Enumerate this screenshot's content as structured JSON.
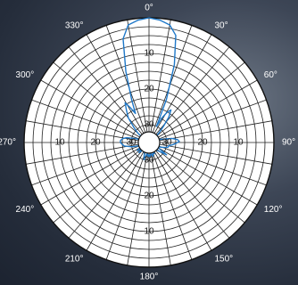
{
  "chart_data": {
    "type": "polar",
    "title": "",
    "radial_axis": {
      "ticks": [
        -10,
        -20,
        -30
      ],
      "tick_labels": [
        "10",
        "20",
        "30"
      ],
      "range_db": [
        -35,
        0
      ],
      "ring_step": 2.5,
      "direction": "inward"
    },
    "angular_axis": {
      "zero_at": "top",
      "direction": "clockwise",
      "ticks": [
        0,
        30,
        60,
        90,
        120,
        150,
        180,
        210,
        240,
        270,
        300,
        330
      ],
      "tick_labels": [
        "0°",
        "30°",
        "60°",
        "90°",
        "120°",
        "150°",
        "180°",
        "210°",
        "240°",
        "270°",
        "300°",
        "330°"
      ],
      "spoke_step": 10
    },
    "grid": true,
    "series": [
      {
        "color": "#1f78c8",
        "theta": [
          0,
          5,
          10,
          14,
          18,
          22,
          25,
          28,
          31,
          34,
          38,
          42,
          46,
          50,
          55,
          60,
          65,
          70,
          75,
          80,
          84,
          88,
          92,
          96,
          100,
          104,
          108,
          112,
          116,
          120,
          125,
          130,
          135,
          140,
          145,
          150,
          155,
          160,
          164,
          168,
          172,
          176,
          180,
          184,
          188,
          192,
          196,
          200,
          205,
          210,
          215,
          220,
          225,
          230,
          235,
          240,
          245,
          250,
          256,
          262,
          266,
          270,
          274,
          278,
          282,
          286,
          290,
          295,
          300,
          305,
          310,
          315,
          320,
          325,
          329,
          332,
          335,
          338,
          342,
          346,
          350,
          355,
          360
        ],
        "r_db": [
          0,
          -0.5,
          -1.5,
          -4,
          -12,
          -22,
          -30,
          -27,
          -25,
          -24,
          -26,
          -29,
          -31,
          -33,
          -34.5,
          -33,
          -32.5,
          -32.5,
          -31.5,
          -28.5,
          -27,
          -26.5,
          -27.5,
          -28.5,
          -29.5,
          -29.5,
          -30.5,
          -31.5,
          -32.5,
          -32,
          -29,
          -31,
          -32,
          -34,
          -33,
          -32.5,
          -31.5,
          -32,
          -31,
          -31.5,
          -32,
          -31,
          -31.5,
          -31,
          -32,
          -31.5,
          -30,
          -31,
          -32,
          -32,
          -34,
          -32,
          -31,
          -33,
          -31,
          -32,
          -33,
          -32.5,
          -30,
          -28,
          -27.5,
          -27,
          -27,
          -27.5,
          -28.5,
          -31,
          -33,
          -34,
          -34.5,
          -33,
          -31,
          -29,
          -26,
          -24,
          -22,
          -24,
          -26,
          -22,
          -14,
          -5,
          -1.5,
          -0.5,
          0
        ]
      }
    ]
  }
}
